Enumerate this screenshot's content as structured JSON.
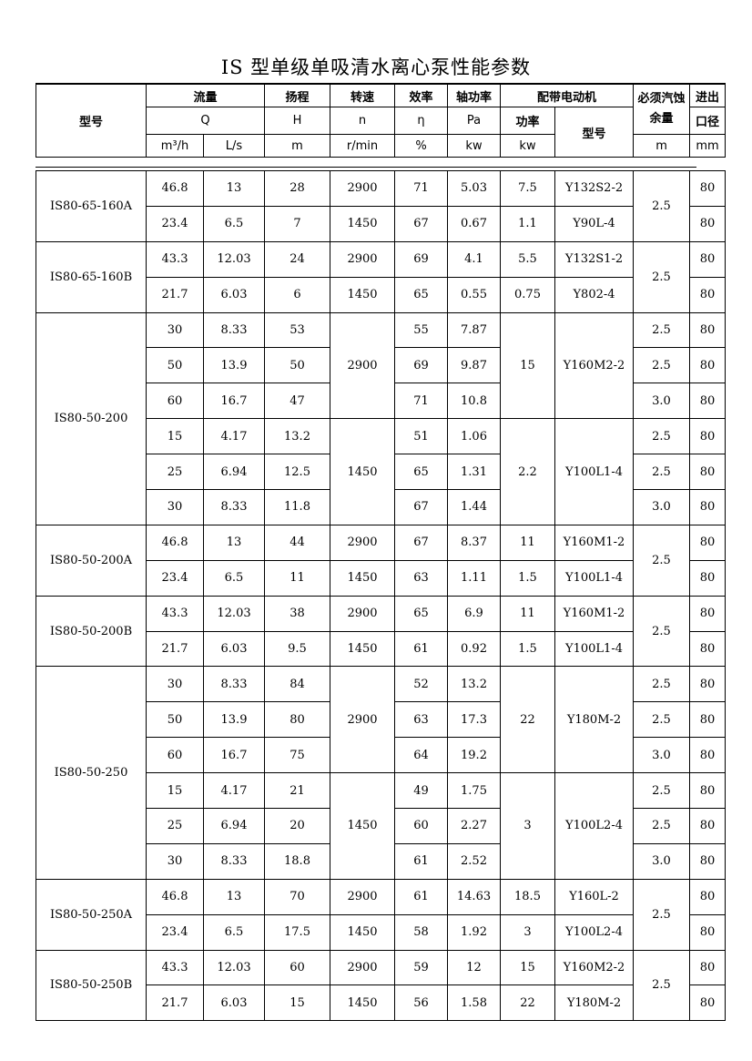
{
  "title": "IS 型单级单吸清水离心泵性能参数",
  "header": {
    "model": "型号",
    "flow": "流量",
    "head": "扬程",
    "speed": "转速",
    "eff": "效率",
    "shaft_power": "轴功率",
    "motor": "配带电动机",
    "npsh": "必须汽蚀余量",
    "bore_1": "进出",
    "bore_2": "口径",
    "Q": "Q",
    "H": "H",
    "n": "n",
    "eta": "η",
    "Pa": "Pa",
    "motor_power": "功率",
    "motor_model": "型号",
    "u_m3h": "m³/h",
    "u_ls": "L/s",
    "u_m": "m",
    "u_rmin": "r/min",
    "u_pct": "%",
    "u_kw": "kw",
    "u_kw2": "kw",
    "u_npsh": "m",
    "u_mm": "mm"
  },
  "rows": [
    [
      "IS80-65-160A",
      "46.8",
      "13",
      "28",
      "2900",
      "71",
      "5.03",
      "7.5",
      "Y132S2-2",
      "2.5",
      "80"
    ],
    [
      null,
      "23.4",
      "6.5",
      "7",
      "1450",
      "67",
      "0.67",
      "1.1",
      "Y90L-4",
      null,
      "80"
    ],
    [
      "IS80-65-160B",
      "43.3",
      "12.03",
      "24",
      "2900",
      "69",
      "4.1",
      "5.5",
      "Y132S1-2",
      "2.5",
      "80"
    ],
    [
      null,
      "21.7",
      "6.03",
      "6",
      "1450",
      "65",
      "0.55",
      "0.75",
      "Y802-4",
      null,
      "80"
    ],
    [
      "IS80-50-200",
      "30",
      "8.33",
      "53",
      "2900",
      "55",
      "7.87",
      "15",
      "Y160M2-2",
      "2.5",
      "80"
    ],
    [
      null,
      "50",
      "13.9",
      "50",
      null,
      "69",
      "9.87",
      null,
      null,
      "2.5",
      "80"
    ],
    [
      null,
      "60",
      "16.7",
      "47",
      null,
      "71",
      "10.8",
      null,
      null,
      "3.0",
      "80"
    ],
    [
      null,
      "15",
      "4.17",
      "13.2",
      "1450",
      "51",
      "1.06",
      "2.2",
      "Y100L1-4",
      "2.5",
      "80"
    ],
    [
      null,
      "25",
      "6.94",
      "12.5",
      null,
      "65",
      "1.31",
      null,
      null,
      "2.5",
      "80"
    ],
    [
      null,
      "30",
      "8.33",
      "11.8",
      null,
      "67",
      "1.44",
      null,
      null,
      "3.0",
      "80"
    ],
    [
      "IS80-50-200A",
      "46.8",
      "13",
      "44",
      "2900",
      "67",
      "8.37",
      "11",
      "Y160M1-2",
      "2.5",
      "80"
    ],
    [
      null,
      "23.4",
      "6.5",
      "11",
      "1450",
      "63",
      "1.11",
      "1.5",
      "Y100L1-4",
      null,
      "80"
    ],
    [
      "IS80-50-200B",
      "43.3",
      "12.03",
      "38",
      "2900",
      "65",
      "6.9",
      "11",
      "Y160M1-2",
      "2.5",
      "80"
    ],
    [
      null,
      "21.7",
      "6.03",
      "9.5",
      "1450",
      "61",
      "0.92",
      "1.5",
      "Y100L1-4",
      null,
      "80"
    ],
    [
      "IS80-50-250",
      "30",
      "8.33",
      "84",
      "2900",
      "52",
      "13.2",
      "22",
      "Y180M-2",
      "2.5",
      "80"
    ],
    [
      null,
      "50",
      "13.9",
      "80",
      null,
      "63",
      "17.3",
      null,
      null,
      "2.5",
      "80"
    ],
    [
      null,
      "60",
      "16.7",
      "75",
      null,
      "64",
      "19.2",
      null,
      null,
      "3.0",
      "80"
    ],
    [
      null,
      "15",
      "4.17",
      "21",
      "1450",
      "49",
      "1.75",
      "3",
      "Y100L2-4",
      "2.5",
      "80"
    ],
    [
      null,
      "25",
      "6.94",
      "20",
      null,
      "60",
      "2.27",
      null,
      null,
      "2.5",
      "80"
    ],
    [
      null,
      "30",
      "8.33",
      "18.8",
      null,
      "61",
      "2.52",
      null,
      null,
      "3.0",
      "80"
    ],
    [
      "IS80-50-250A",
      "46.8",
      "13",
      "70",
      "2900",
      "61",
      "14.63",
      "18.5",
      "Y160L-2",
      "2.5",
      "80"
    ],
    [
      null,
      "23.4",
      "6.5",
      "17.5",
      "1450",
      "58",
      "1.92",
      "3",
      "Y100L2-4",
      null,
      "80"
    ],
    [
      "IS80-50-250B",
      "43.3",
      "12.03",
      "60",
      "2900",
      "59",
      "12",
      "15",
      "Y160M2-2",
      "2.5",
      "80"
    ],
    [
      null,
      "21.7",
      "6.03",
      "15",
      "1450",
      "56",
      "1.58",
      "22",
      "Y180M-2",
      null,
      "80"
    ]
  ]
}
